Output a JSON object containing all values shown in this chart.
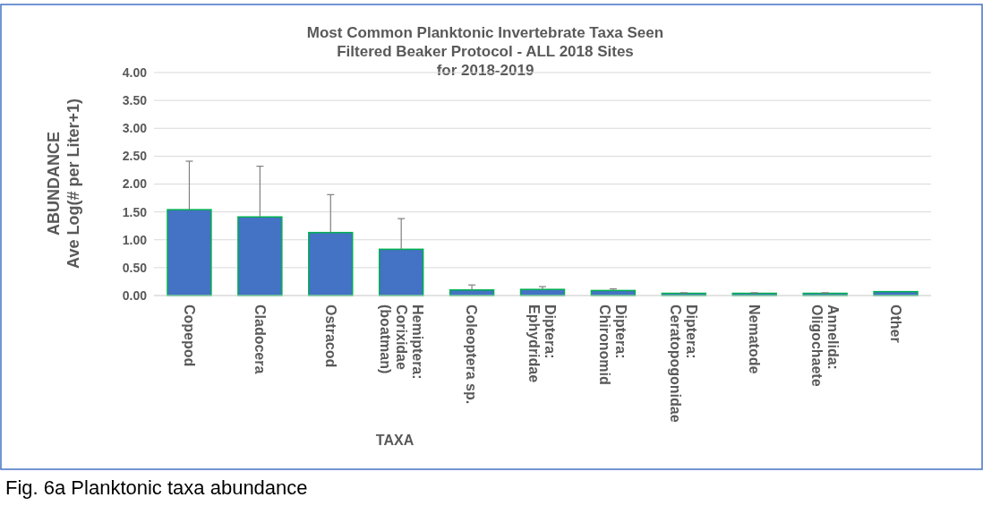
{
  "chart_data": {
    "type": "bar",
    "title": "Most Common Planktonic Invertebrate Taxa Seen\nFiltered Beaker Protocol - ALL 2018 Sites\nfor 2018-2019",
    "xlabel": "TAXA",
    "ylabel": "ABUNDANCE\nAve Log(# per Liter+1)",
    "categories": [
      "Copepod",
      "Cladocera",
      "Ostracod",
      "Hemiptera:\nCorixidae\n(boatman)",
      "Coleoptera sp.",
      "Diptera:\nEphydridae",
      "Diptera:\nChironomid",
      "Diptera:\nCeratopogonidae",
      "Nematode",
      "Annelida:\nOligochaete",
      "Other"
    ],
    "values": [
      1.54,
      1.41,
      1.13,
      0.83,
      0.1,
      0.11,
      0.09,
      0.04,
      0.04,
      0.04,
      0.07
    ],
    "errors": [
      [
        1.54,
        2.41
      ],
      [
        1.41,
        2.32
      ],
      [
        1.13,
        1.81
      ],
      [
        0.83,
        1.38
      ],
      [
        0.1,
        0.19
      ],
      [
        0.11,
        0.16
      ],
      [
        0.09,
        0.12
      ],
      [
        0.04,
        0.05
      ],
      [
        0.04,
        0.05
      ],
      [
        0.04,
        0.05
      ],
      null
    ],
    "color": "#4472c4",
    "ylim": [
      0,
      4
    ],
    "yticks": [
      {
        "value": 0,
        "label": "0.00"
      },
      {
        "value": 0.5,
        "label": "0.50"
      },
      {
        "value": 1,
        "label": "1.00"
      },
      {
        "value": 1.5,
        "label": "1.50"
      },
      {
        "value": 2,
        "label": "2.00"
      },
      {
        "value": 2.5,
        "label": "2.50"
      },
      {
        "value": 3,
        "label": "3.00"
      },
      {
        "value": 3.5,
        "label": "3.50"
      },
      {
        "value": 4,
        "label": "4.00"
      }
    ],
    "grid": "y",
    "annotations": [
      "Fig. 6a Planktonic taxa abundance"
    ]
  }
}
